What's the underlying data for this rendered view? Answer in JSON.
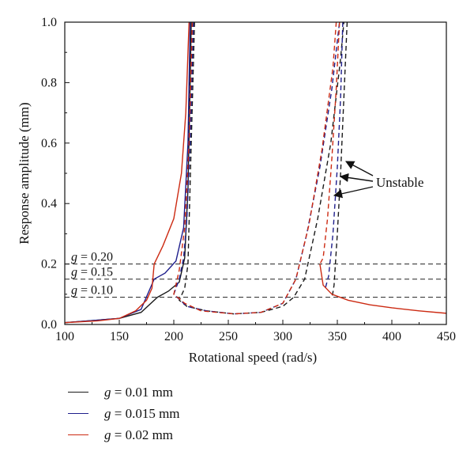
{
  "chart_data": {
    "type": "line",
    "xlabel": "Rotational speed (rad/s)",
    "ylabel": "Response amplitude (mm)",
    "xlim": [
      100,
      450
    ],
    "ylim": [
      0.0,
      1.0
    ],
    "xticks": [
      "100",
      "150",
      "200",
      "250",
      "300",
      "350",
      "400",
      "450"
    ],
    "yticks": [
      "0.0",
      "0.2",
      "0.4",
      "0.6",
      "0.8",
      "1.0"
    ],
    "grid": false,
    "legend_position": "bottom-left",
    "annotation": "Unstable",
    "reference_lines": [
      {
        "var": "g",
        "text": " = 0.20",
        "y": 0.2
      },
      {
        "var": "g",
        "text": " = 0.15",
        "y": 0.15
      },
      {
        "var": "g",
        "text": " = 0.10",
        "y": 0.09
      }
    ],
    "series": [
      {
        "legend_var": "g",
        "legend_value": " = 0.01 mm",
        "color": "#1a1a1a",
        "stable_low": [
          [
            100,
            0.006
          ],
          [
            150,
            0.02
          ],
          [
            170,
            0.04
          ],
          [
            185,
            0.09
          ],
          [
            195,
            0.11
          ],
          [
            205,
            0.14
          ],
          [
            210,
            0.22
          ],
          [
            213,
            0.45
          ],
          [
            215,
            0.8
          ],
          [
            216,
            1.0
          ]
        ],
        "unstable_low": [
          [
            219,
            1.0
          ],
          [
            216,
            0.6
          ],
          [
            213,
            0.2
          ],
          [
            210,
            0.12
          ],
          [
            205,
            0.08
          ],
          [
            212,
            0.06
          ],
          [
            230,
            0.045
          ],
          [
            255,
            0.035
          ],
          [
            280,
            0.04
          ],
          [
            300,
            0.06
          ],
          [
            310,
            0.09
          ],
          [
            320,
            0.15
          ],
          [
            332,
            0.35
          ],
          [
            344,
            0.6
          ],
          [
            353,
            0.88
          ],
          [
            356,
            1.0
          ]
        ],
        "unstable_high": [
          [
            359,
            1.0
          ],
          [
            356,
            0.75
          ],
          [
            353,
            0.5
          ],
          [
            350,
            0.3
          ],
          [
            347,
            0.13
          ],
          [
            345,
            0.085
          ]
        ]
      },
      {
        "legend_var": "g",
        "legend_value": " = 0.015 mm",
        "color": "#1e1e8c",
        "stable_low": [
          [
            100,
            0.006
          ],
          [
            150,
            0.02
          ],
          [
            170,
            0.05
          ],
          [
            182,
            0.15
          ],
          [
            192,
            0.17
          ],
          [
            202,
            0.21
          ],
          [
            209,
            0.32
          ],
          [
            213,
            0.6
          ],
          [
            215,
            1.0
          ]
        ],
        "unstable_low": [
          [
            218,
            1.0
          ],
          [
            215,
            0.6
          ],
          [
            212,
            0.35
          ],
          [
            209,
            0.22
          ],
          [
            205,
            0.15
          ],
          [
            200,
            0.1
          ],
          [
            212,
            0.06
          ],
          [
            230,
            0.045
          ],
          [
            255,
            0.035
          ],
          [
            280,
            0.04
          ],
          [
            300,
            0.07
          ],
          [
            312,
            0.15
          ],
          [
            322,
            0.3
          ],
          [
            334,
            0.52
          ],
          [
            345,
            0.78
          ],
          [
            352,
            1.0
          ]
        ],
        "unstable_high": [
          [
            355,
            1.0
          ],
          [
            353,
            0.75
          ],
          [
            350,
            0.52
          ],
          [
            346,
            0.3
          ],
          [
            342,
            0.16
          ],
          [
            339,
            0.12
          ]
        ]
      },
      {
        "legend_var": "g",
        "legend_value": " = 0.02 mm",
        "color": "#cc2a12",
        "stable_low": [
          [
            100,
            0.006
          ],
          [
            130,
            0.012
          ],
          [
            150,
            0.02
          ],
          [
            165,
            0.045
          ],
          [
            175,
            0.08
          ],
          [
            180,
            0.12
          ],
          [
            182,
            0.2
          ],
          [
            190,
            0.26
          ],
          [
            200,
            0.35
          ],
          [
            207,
            0.5
          ],
          [
            211,
            0.7
          ],
          [
            213,
            0.9
          ],
          [
            214,
            1.0
          ]
        ],
        "unstable_low": [
          [
            217,
            1.0
          ],
          [
            214,
            0.6
          ],
          [
            210,
            0.32
          ],
          [
            205,
            0.18
          ],
          [
            200,
            0.1
          ],
          [
            210,
            0.07
          ],
          [
            225,
            0.045
          ],
          [
            255,
            0.035
          ],
          [
            280,
            0.04
          ],
          [
            300,
            0.07
          ],
          [
            312,
            0.15
          ],
          [
            324,
            0.33
          ],
          [
            336,
            0.58
          ],
          [
            346,
            0.85
          ],
          [
            349,
            1.0
          ]
        ],
        "stable_high": [
          [
            334,
            0.2
          ],
          [
            337,
            0.13
          ],
          [
            345,
            0.1
          ],
          [
            360,
            0.08
          ],
          [
            380,
            0.065
          ],
          [
            400,
            0.055
          ],
          [
            425,
            0.045
          ],
          [
            450,
            0.037
          ]
        ],
        "unstable_high": [
          [
            352,
            1.0
          ],
          [
            349,
            0.78
          ],
          [
            345,
            0.55
          ],
          [
            341,
            0.35
          ],
          [
            337,
            0.22
          ],
          [
            334,
            0.2
          ]
        ]
      }
    ]
  }
}
